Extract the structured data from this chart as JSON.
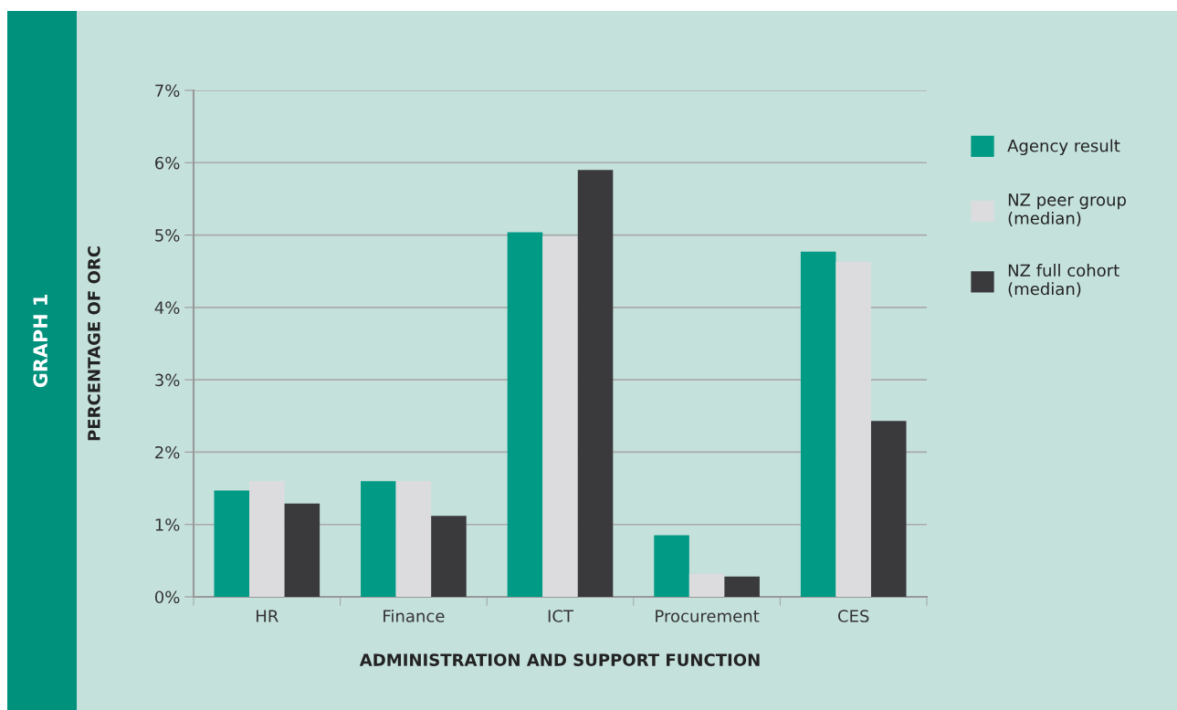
{
  "chart_data": {
    "type": "bar",
    "xlabel": "ADMINISTRATION AND SUPPORT FUNCTION",
    "ylabel": "PERCENTAGE OF ORC",
    "annotations": [
      "GRAPH 1"
    ],
    "categories": [
      "HR",
      "Finance",
      "ICT",
      "Procurement",
      "CES"
    ],
    "series": [
      {
        "name": "Agency result",
        "color": "#009a85",
        "values": [
          1.47,
          1.6,
          5.04,
          0.85,
          4.77
        ]
      },
      {
        "name": "NZ peer group\n(median)",
        "color": "#dcdcde",
        "values": [
          1.6,
          1.6,
          4.98,
          0.32,
          4.63
        ]
      },
      {
        "name": "NZ full cohort\n(median)",
        "color": "#3a3a3c",
        "values": [
          1.29,
          1.12,
          5.9,
          0.28,
          2.43
        ]
      }
    ],
    "ylim": [
      0,
      7
    ],
    "yticks": [
      {
        "value": 0,
        "label": "0%"
      },
      {
        "value": 1,
        "label": "1%"
      },
      {
        "value": 2,
        "label": "2%"
      },
      {
        "value": 3,
        "label": "3%"
      },
      {
        "value": 4,
        "label": "4%"
      },
      {
        "value": 5,
        "label": "5%"
      },
      {
        "value": 6,
        "label": "6%"
      },
      {
        "value": 7,
        "label": "7%"
      }
    ],
    "grid": "y",
    "legend": "right"
  }
}
